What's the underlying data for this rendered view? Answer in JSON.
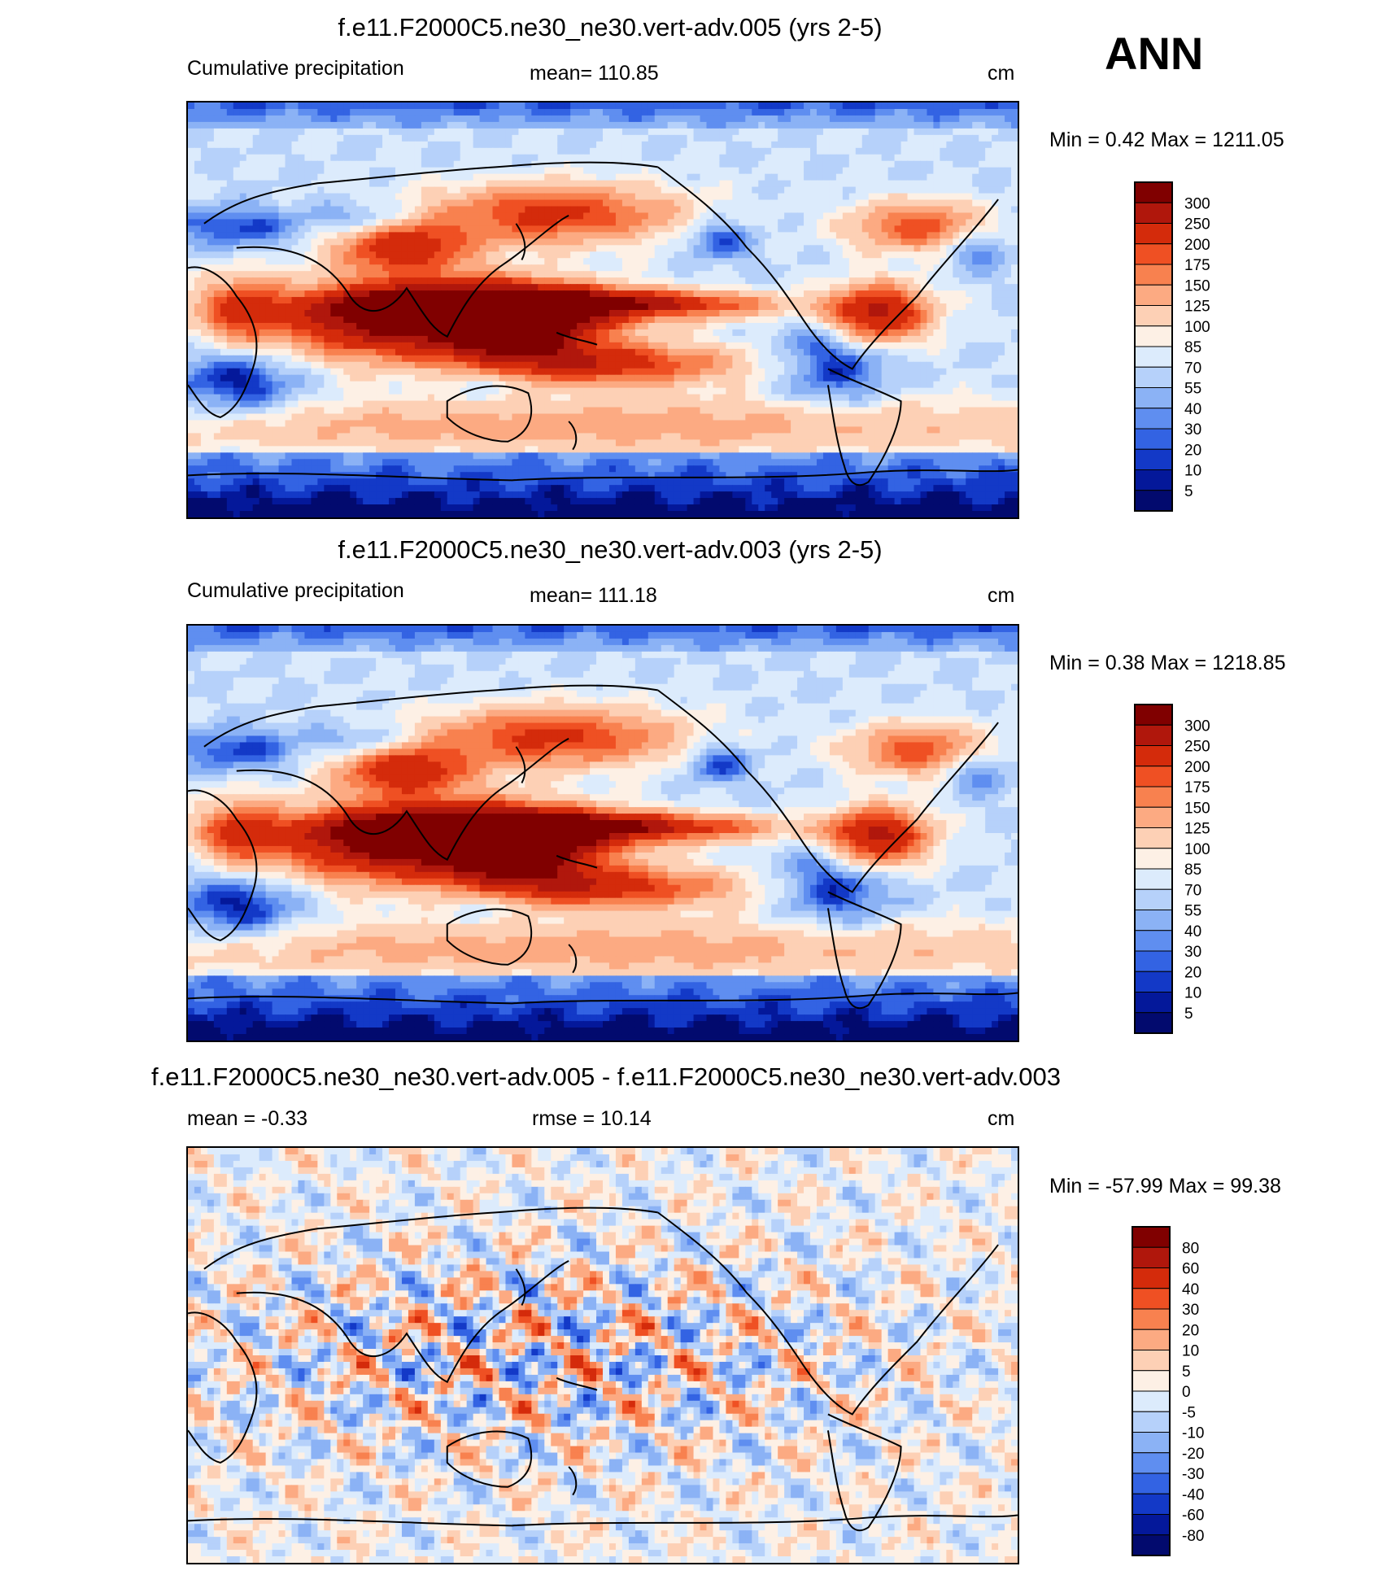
{
  "season": "ANN",
  "chart_data": [
    {
      "type": "heatmap",
      "title": "f.e11.F2000C5.ne30_ne30.vert-adv.005 (yrs 2-5)",
      "left_label": "Cumulative precipitation",
      "center_label": "mean= 110.85",
      "units": "cm",
      "minmax": "Min =    0.42 Max = 1211.05",
      "colorbar_levels": [
        "300",
        "250",
        "200",
        "175",
        "150",
        "125",
        "100",
        "85",
        "70",
        "55",
        "40",
        "30",
        "20",
        "10",
        "5"
      ],
      "colors": [
        "#800000",
        "#b0170c",
        "#d42b0b",
        "#ef5023",
        "#f8814f",
        "#fcaa82",
        "#fdd0b5",
        "#fdf0e5",
        "#dcebfc",
        "#b6d1fa",
        "#8bb2f5",
        "#5f8ef0",
        "#3363e3",
        "#1339c7",
        "#04189a",
        "#020a6e"
      ],
      "mean": 110.85,
      "min": 0.42,
      "max": 1211.05
    },
    {
      "type": "heatmap",
      "title": "f.e11.F2000C5.ne30_ne30.vert-adv.003 (yrs 2-5)",
      "left_label": "Cumulative precipitation",
      "center_label": "mean= 111.18",
      "units": "cm",
      "minmax": "Min =    0.38 Max = 1218.85",
      "colorbar_levels": [
        "300",
        "250",
        "200",
        "175",
        "150",
        "125",
        "100",
        "85",
        "70",
        "55",
        "40",
        "30",
        "20",
        "10",
        "5"
      ],
      "colors": [
        "#800000",
        "#b0170c",
        "#d42b0b",
        "#ef5023",
        "#f8814f",
        "#fcaa82",
        "#fdd0b5",
        "#fdf0e5",
        "#dcebfc",
        "#b6d1fa",
        "#8bb2f5",
        "#5f8ef0",
        "#3363e3",
        "#1339c7",
        "#04189a",
        "#020a6e"
      ],
      "mean": 111.18,
      "min": 0.38,
      "max": 1218.85
    },
    {
      "type": "heatmap",
      "title": "f.e11.F2000C5.ne30_ne30.vert-adv.005 - f.e11.F2000C5.ne30_ne30.vert-adv.003",
      "left_label": "mean =  -0.33",
      "center_label": "rmse =  10.14",
      "units": "cm",
      "minmax": "Min = -57.99 Max =  99.38",
      "colorbar_levels": [
        "80",
        "60",
        "40",
        "30",
        "20",
        "10",
        "5",
        "0",
        "-5",
        "-10",
        "-20",
        "-30",
        "-40",
        "-60",
        "-80"
      ],
      "colors": [
        "#800000",
        "#b0170c",
        "#d42b0b",
        "#ef5023",
        "#f8814f",
        "#fcaa82",
        "#fdd0b5",
        "#fdf0e5",
        "#dcebfc",
        "#b6d1fa",
        "#8bb2f5",
        "#5f8ef0",
        "#3363e3",
        "#1339c7",
        "#04189a",
        "#020a6e"
      ],
      "mean": -0.33,
      "rmse": 10.14,
      "min": -57.99,
      "max": 99.38
    }
  ]
}
